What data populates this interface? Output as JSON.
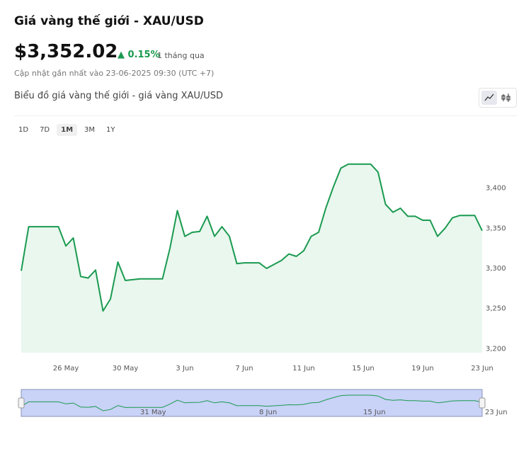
{
  "header": {
    "title": "Giá vàng thế giới - XAU/USD",
    "price": "$3,352.02",
    "change": "0.15%",
    "period": "1 tháng qua",
    "updated": "Cập nhật gần nhất vào 23-06-2025 09:30 (UTC +7)"
  },
  "range_buttons": {
    "options": [
      "1D",
      "7D",
      "1M",
      "3M",
      "1Y"
    ],
    "active": "1M"
  },
  "chart_data": {
    "type": "line",
    "title": "Biểu đồ giá vàng thế giới - giá vàng XAU/USD",
    "categories": [
      null,
      null,
      null,
      null,
      null,
      null,
      "26 May",
      null,
      null,
      null,
      null,
      null,
      null,
      null,
      "30 May",
      null,
      null,
      null,
      null,
      null,
      null,
      null,
      "3 Jun",
      null,
      null,
      null,
      null,
      null,
      null,
      null,
      "7 Jun",
      null,
      null,
      null,
      null,
      null,
      null,
      null,
      "11 Jun",
      null,
      null,
      null,
      null,
      null,
      null,
      null,
      "15 Jun",
      null,
      null,
      null,
      null,
      null,
      null,
      null,
      "19 Jun",
      null,
      null,
      null,
      null,
      null,
      null,
      null,
      "23 Jun"
    ],
    "series": [
      {
        "name": "XAU/USD",
        "color": "#1a9a50",
        "values": [
          3297,
          3352,
          3352,
          3352,
          3352,
          3352,
          3328,
          3338,
          3290,
          3288,
          3298,
          3247,
          3262,
          3308,
          3285,
          3286,
          3287,
          3287,
          3287,
          3287,
          3325,
          3372,
          3340,
          3345,
          3346,
          3365,
          3340,
          3352,
          3340,
          3306,
          3307,
          3307,
          3307,
          3300,
          3305,
          3310,
          3318,
          3315,
          3322,
          3340,
          3345,
          3376,
          3402,
          3425,
          3430,
          3430,
          3430,
          3430,
          3420,
          3380,
          3370,
          3375,
          3365,
          3365,
          3360,
          3360,
          3340,
          3350,
          3363,
          3366,
          3366,
          3366,
          3347
        ]
      }
    ],
    "ylim": [
      3195,
      3458
    ],
    "yticks": [
      {
        "value": 3200,
        "label": "3,200"
      },
      {
        "value": 3250,
        "label": "3,250"
      },
      {
        "value": 3300,
        "label": "3,300"
      },
      {
        "value": 3350,
        "label": "3,350"
      },
      {
        "value": 3400,
        "label": "3,400"
      }
    ],
    "grid": false,
    "navigator_labels": [
      "31 May",
      "8 Jun",
      "15 Jun",
      "23 Jun"
    ]
  }
}
